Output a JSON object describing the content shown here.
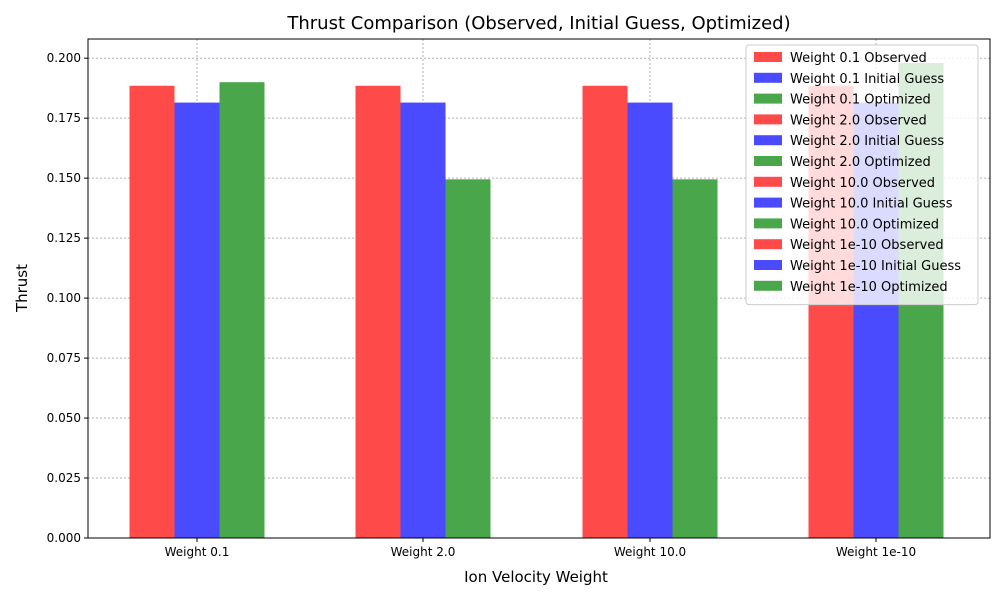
{
  "chart_data": {
    "type": "bar",
    "title": "Thrust Comparison (Observed, Initial Guess, Optimized)",
    "xlabel": "Ion Velocity Weight",
    "ylabel": "Thrust",
    "categories": [
      "Weight 0.1",
      "Weight 2.0",
      "Weight 10.0",
      "Weight 1e-10"
    ],
    "ylim": [
      0,
      0.208
    ],
    "yticks": [
      "0.000",
      "0.025",
      "0.050",
      "0.075",
      "0.100",
      "0.125",
      "0.150",
      "0.175",
      "0.200"
    ],
    "grid": true,
    "legend_position": "top-right",
    "colors": {
      "Observed": "#ff4a4a",
      "Initial Guess": "#4a4aff",
      "Optimized": "#4aa64a"
    },
    "series_order": [
      "Observed",
      "Initial Guess",
      "Optimized"
    ],
    "bars": [
      {
        "category": "Weight 0.1",
        "values": {
          "Observed": 0.1885,
          "Initial Guess": 0.1815,
          "Optimized": 0.19
        }
      },
      {
        "category": "Weight 2.0",
        "values": {
          "Observed": 0.1885,
          "Initial Guess": 0.1815,
          "Optimized": 0.1495
        }
      },
      {
        "category": "Weight 10.0",
        "values": {
          "Observed": 0.1885,
          "Initial Guess": 0.1815,
          "Optimized": 0.1495
        }
      },
      {
        "category": "Weight 1e-10",
        "values": {
          "Observed": 0.1885,
          "Initial Guess": 0.1815,
          "Optimized": 0.198
        }
      }
    ],
    "legend": [
      {
        "label": "Weight 0.1 Observed",
        "series": "Observed"
      },
      {
        "label": "Weight 0.1 Initial Guess",
        "series": "Initial Guess"
      },
      {
        "label": "Weight 0.1 Optimized",
        "series": "Optimized"
      },
      {
        "label": "Weight 2.0 Observed",
        "series": "Observed"
      },
      {
        "label": "Weight 2.0 Initial Guess",
        "series": "Initial Guess"
      },
      {
        "label": "Weight 2.0 Optimized",
        "series": "Optimized"
      },
      {
        "label": "Weight 10.0 Observed",
        "series": "Observed"
      },
      {
        "label": "Weight 10.0 Initial Guess",
        "series": "Initial Guess"
      },
      {
        "label": "Weight 10.0 Optimized",
        "series": "Optimized"
      },
      {
        "label": "Weight 1e-10 Observed",
        "series": "Observed"
      },
      {
        "label": "Weight 1e-10 Initial Guess",
        "series": "Initial Guess"
      },
      {
        "label": "Weight 1e-10 Optimized",
        "series": "Optimized"
      }
    ]
  }
}
